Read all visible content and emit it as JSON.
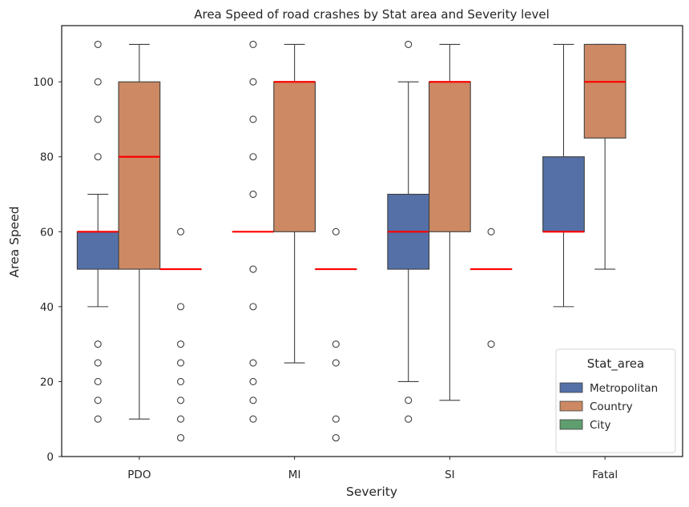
{
  "chart_data": {
    "type": "boxplot",
    "title": "Area Speed of road crashes by Stat area and Severity level",
    "xlabel": "Severity",
    "ylabel": "Area Speed",
    "categories": [
      "PDO",
      "MI",
      "SI",
      "Fatal"
    ],
    "ylim": [
      0,
      115
    ],
    "yticks": [
      0,
      20,
      40,
      60,
      80,
      100
    ],
    "grid": false,
    "legend": {
      "title": "Stat_area",
      "placement": "lower-right"
    },
    "median_color": "#ff0000",
    "series": [
      {
        "name": "Metropolitan",
        "color": "#5470a7",
        "boxes": [
          {
            "category": "PDO",
            "q1": 50,
            "median": 60,
            "q3": 60,
            "whisker_low": 40,
            "whisker_high": 70,
            "outliers": [
              10,
              15,
              20,
              25,
              30,
              80,
              90,
              100,
              110
            ]
          },
          {
            "category": "MI",
            "q1": 60,
            "median": 60,
            "q3": 60,
            "whisker_low": 60,
            "whisker_high": 60,
            "outliers": [
              10,
              15,
              20,
              25,
              40,
              50,
              70,
              80,
              90,
              100,
              110
            ]
          },
          {
            "category": "SI",
            "q1": 50,
            "median": 60,
            "q3": 70,
            "whisker_low": 20,
            "whisker_high": 100,
            "outliers": [
              10,
              15,
              110
            ]
          },
          {
            "category": "Fatal",
            "q1": 60,
            "median": 60,
            "q3": 80,
            "whisker_low": 40,
            "whisker_high": 110,
            "outliers": []
          }
        ]
      },
      {
        "name": "Country",
        "color": "#cc8963",
        "boxes": [
          {
            "category": "PDO",
            "q1": 50,
            "median": 80,
            "q3": 100,
            "whisker_low": 10,
            "whisker_high": 110,
            "outliers": []
          },
          {
            "category": "MI",
            "q1": 60,
            "median": 100,
            "q3": 100,
            "whisker_low": 25,
            "whisker_high": 110,
            "outliers": []
          },
          {
            "category": "SI",
            "q1": 60,
            "median": 100,
            "q3": 100,
            "whisker_low": 15,
            "whisker_high": 110,
            "outliers": []
          },
          {
            "category": "Fatal",
            "q1": 85,
            "median": 100,
            "q3": 110,
            "whisker_low": 50,
            "whisker_high": 110,
            "outliers": []
          }
        ]
      },
      {
        "name": "City",
        "color": "#5f9e6e",
        "boxes": [
          {
            "category": "PDO",
            "q1": 50,
            "median": 50,
            "q3": 50,
            "whisker_low": 50,
            "whisker_high": 50,
            "outliers": [
              5,
              10,
              15,
              20,
              25,
              30,
              40,
              60
            ]
          },
          {
            "category": "MI",
            "q1": 50,
            "median": 50,
            "q3": 50,
            "whisker_low": 50,
            "whisker_high": 50,
            "outliers": [
              5,
              10,
              25,
              30,
              60
            ]
          },
          {
            "category": "SI",
            "q1": 50,
            "median": 50,
            "q3": 50,
            "whisker_low": 50,
            "whisker_high": 50,
            "outliers": [
              30,
              60
            ]
          }
        ]
      }
    ]
  }
}
